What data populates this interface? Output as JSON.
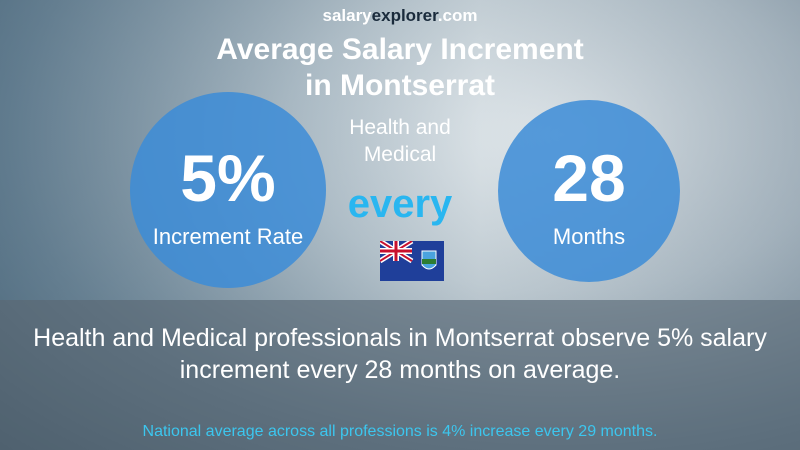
{
  "brand": {
    "part1": "salary",
    "part2": "explorer",
    "part3": ".com"
  },
  "title": {
    "line1": "Average Salary Increment",
    "line2": "in Montserrat"
  },
  "subtitle": "Health and Medical",
  "left_circle": {
    "value": "5%",
    "label": "Increment Rate"
  },
  "connector": "every",
  "right_circle": {
    "value": "28",
    "label": "Months"
  },
  "description": "Health and Medical professionals in Montserrat observe 5% salary increment every 28 months on average.",
  "footer": "National average across all professions is 4% increase every 29 months."
}
